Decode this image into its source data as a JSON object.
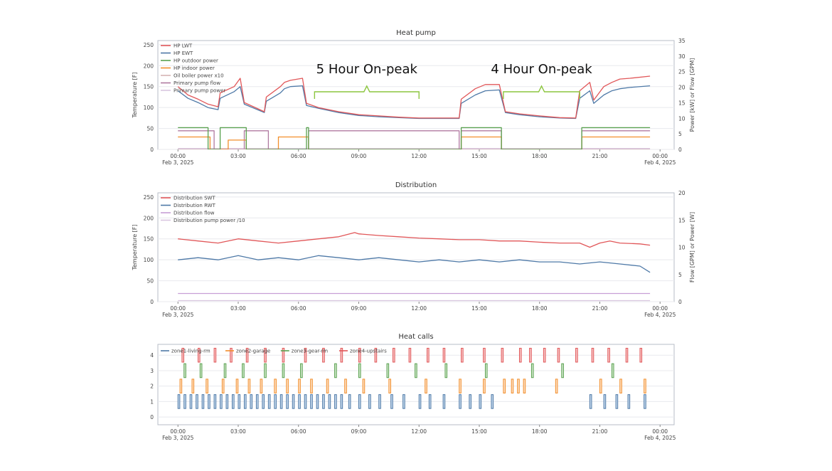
{
  "chart_data": [
    {
      "type": "line",
      "title": "Heat pump",
      "ylabel": "Temperature [F]",
      "y2label": "Power [kW] or Flow [GPM]",
      "ylim": [
        0,
        260
      ],
      "y2lim": [
        0,
        35
      ],
      "yticks": [
        "0",
        "50",
        "100",
        "150",
        "200",
        "250"
      ],
      "y2ticks": [
        "0",
        "5",
        "10",
        "15",
        "20",
        "25",
        "30",
        "35"
      ],
      "xticks": [
        "00:00",
        "03:00",
        "06:00",
        "09:00",
        "12:00",
        "15:00",
        "18:00",
        "21:00",
        "00:00"
      ],
      "xtick_dates": [
        "Feb 3, 2025",
        "",
        "",
        "",
        "",
        "",
        "",
        "",
        "Feb 4, 2025"
      ],
      "legend_position": "top-left",
      "colors": {
        "hp_lwt": "#e15759",
        "hp_ewt": "#4e79a7",
        "outdoor_power": "#59a14f",
        "indoor_power": "#f28e2b",
        "oil_boiler": "#d6b4b4",
        "pump_flow": "#b07aa1",
        "pump_power": "#d9c7e0",
        "annotation": "#8cc63f"
      },
      "series": [
        {
          "name": "HP LWT",
          "axis": "y",
          "x": [
            0,
            0.5,
            1,
            1.5,
            2.0,
            2.1,
            2.8,
            3.1,
            3.3,
            4.3,
            4.4,
            5.1,
            5.3,
            5.6,
            6.2,
            6.4,
            7,
            8,
            9,
            10,
            11,
            12,
            13,
            14.0,
            14.1,
            14.8,
            15.3,
            16.0,
            16.3,
            17,
            18,
            19,
            19.8,
            20.0,
            20.5,
            20.7,
            21.2,
            21.6,
            22.0,
            22.5,
            23.5
          ],
          "values": [
            150,
            130,
            120,
            108,
            102,
            135,
            150,
            170,
            112,
            90,
            125,
            150,
            160,
            165,
            170,
            110,
            100,
            90,
            83,
            80,
            77,
            75,
            75,
            75,
            120,
            145,
            155,
            155,
            90,
            85,
            80,
            76,
            75,
            140,
            160,
            118,
            150,
            160,
            168,
            170,
            175
          ]
        },
        {
          "name": "HP EWT",
          "axis": "y",
          "x": [
            0,
            0.5,
            1,
            1.5,
            2.0,
            2.1,
            2.8,
            3.1,
            3.3,
            4.3,
            4.4,
            5.1,
            5.3,
            5.6,
            6.2,
            6.4,
            7,
            8,
            9,
            10,
            11,
            12,
            13,
            14.0,
            14.1,
            14.8,
            15.3,
            16.0,
            16.3,
            17,
            18,
            19,
            19.8,
            20.0,
            20.5,
            20.7,
            21.2,
            21.6,
            22.0,
            22.5,
            23.5
          ],
          "values": [
            140,
            122,
            112,
            100,
            95,
            122,
            138,
            150,
            108,
            88,
            115,
            135,
            145,
            150,
            152,
            105,
            98,
            88,
            81,
            78,
            76,
            74,
            74,
            74,
            110,
            130,
            140,
            142,
            88,
            83,
            78,
            75,
            74,
            122,
            140,
            110,
            130,
            140,
            145,
            148,
            152
          ]
        },
        {
          "name": "HP outdoor power",
          "axis": "y2",
          "x": [
            0,
            0.6,
            1.5,
            1.6,
            2.1,
            3.3,
            3.4,
            4.4,
            6.4,
            6.5,
            14.0,
            14.1,
            16.0,
            16.1,
            20.0,
            20.1,
            23.5
          ],
          "values": [
            7,
            7,
            0,
            0,
            7,
            7,
            0,
            0,
            7,
            0,
            0,
            7,
            7,
            0,
            0,
            7,
            7
          ]
        },
        {
          "name": "HP indoor power",
          "axis": "y2",
          "x": [
            0,
            1.5,
            1.6,
            2.1,
            2.5,
            3.3,
            3.4,
            4.4,
            5.0,
            6.4,
            6.5,
            14.0,
            14.1,
            16.0,
            16.1,
            20.0,
            20.1,
            23.5
          ],
          "values": [
            4,
            4,
            0,
            0,
            3,
            3,
            0,
            0,
            4,
            4,
            0,
            0,
            4,
            4,
            0,
            0,
            4,
            4
          ]
        },
        {
          "name": "Oil boiler power x10",
          "axis": "y2",
          "x": [
            0,
            23.5
          ],
          "values": [
            0,
            0
          ]
        },
        {
          "name": "Primary pump flow",
          "axis": "y2",
          "x": [
            0,
            1.7,
            1.8,
            3.2,
            3.3,
            4.4,
            4.5,
            6.4,
            6.5,
            14.0,
            14.1,
            16.0,
            16.1,
            20.0,
            20.1,
            23.5
          ],
          "values": [
            6,
            6,
            0,
            0,
            6,
            6,
            0,
            0,
            6,
            0,
            6,
            6,
            0,
            0,
            6,
            6
          ]
        },
        {
          "name": "Primary pump power",
          "axis": "y2",
          "x": [
            0,
            23.5
          ],
          "values": [
            0.3,
            0.3
          ]
        }
      ],
      "annotations": [
        {
          "text": "5 Hour On-peak",
          "x_start": 6.8,
          "x_end": 12.0
        },
        {
          "text": "4 Hour On-peak",
          "x_start": 16.2,
          "x_end": 20.0
        }
      ]
    },
    {
      "type": "line",
      "title": "Distribution",
      "ylabel": "Temperature [F]",
      "y2label": "Flow [GPM] or Power [W]",
      "ylim": [
        0,
        260
      ],
      "y2lim": [
        0,
        20
      ],
      "yticks": [
        "0",
        "50",
        "100",
        "150",
        "200",
        "250"
      ],
      "y2ticks": [
        "0",
        "5",
        "10",
        "15",
        "20"
      ],
      "xticks": [
        "00:00",
        "03:00",
        "06:00",
        "09:00",
        "12:00",
        "15:00",
        "18:00",
        "21:00",
        "00:00"
      ],
      "xtick_dates": [
        "Feb 3, 2025",
        "",
        "",
        "",
        "",
        "",
        "",
        "",
        "Feb 4, 2025"
      ],
      "legend_position": "top-left",
      "colors": {
        "swt": "#e15759",
        "rwt": "#4e79a7",
        "flow": "#c79fd6",
        "pump_power": "#d9c7e0"
      },
      "series": [
        {
          "name": "Distribution SWT",
          "axis": "y",
          "x": [
            0,
            1,
            2,
            3,
            4,
            5,
            6,
            7,
            8,
            8.8,
            9,
            10,
            11,
            12,
            13,
            14,
            15,
            16,
            17,
            18,
            19,
            20,
            20.5,
            21,
            21.5,
            22,
            23,
            23.5
          ],
          "values": [
            150,
            145,
            140,
            150,
            145,
            140,
            145,
            150,
            155,
            165,
            162,
            158,
            155,
            152,
            150,
            148,
            148,
            145,
            145,
            142,
            140,
            140,
            130,
            140,
            145,
            140,
            138,
            135
          ]
        },
        {
          "name": "Distribution RWT",
          "axis": "y",
          "x": [
            0,
            1,
            2,
            3,
            4,
            5,
            6,
            7,
            8,
            9,
            10,
            11,
            12,
            13,
            14,
            15,
            16,
            17,
            18,
            19,
            20,
            21,
            22,
            23,
            23.5
          ],
          "values": [
            100,
            105,
            100,
            110,
            100,
            105,
            100,
            110,
            105,
            100,
            105,
            100,
            95,
            100,
            95,
            100,
            95,
            100,
            95,
            95,
            90,
            95,
            90,
            85,
            70
          ]
        },
        {
          "name": "Distribution flow",
          "axis": "y2",
          "x": [
            0,
            23.5
          ],
          "values": [
            1.5,
            1.5
          ]
        },
        {
          "name": "Distribution pump power /10",
          "axis": "y2",
          "x": [
            0,
            23.5
          ],
          "values": [
            0.2,
            0.2
          ]
        }
      ]
    },
    {
      "type": "bar",
      "title": "Heat calls",
      "ylim": [
        -0.5,
        4.7
      ],
      "yticks": [
        "0",
        "1",
        "2",
        "3",
        "4"
      ],
      "xticks": [
        "00:00",
        "03:00",
        "06:00",
        "09:00",
        "12:00",
        "15:00",
        "18:00",
        "21:00",
        "00:00"
      ],
      "xtick_dates": [
        "Feb 3, 2025",
        "",
        "",
        "",
        "",
        "",
        "",
        "",
        "Feb 4, 2025"
      ],
      "legend_position": "top-left",
      "series": [
        {
          "name": "zone1-living-rm",
          "level": 1,
          "color": "#4e79a7",
          "fill": "#c6d9ec",
          "calls": [
            0.0,
            0.3,
            0.6,
            0.9,
            1.2,
            1.5,
            1.8,
            2.1,
            2.4,
            2.7,
            3.0,
            3.3,
            3.6,
            3.9,
            4.2,
            4.5,
            4.8,
            5.1,
            5.4,
            5.7,
            6.0,
            6.3,
            6.6,
            6.9,
            7.2,
            7.5,
            7.8,
            8.1,
            8.5,
            9.0,
            9.5,
            10.0,
            10.6,
            11.2,
            12.0,
            12.5,
            13.2,
            14.0,
            14.5,
            15.0,
            15.6,
            20.5,
            21.2,
            21.8,
            22.4,
            23.2
          ]
        },
        {
          "name": "zone2-garage",
          "level": 2,
          "color": "#f28e2b",
          "fill": "#fde0c5",
          "calls": [
            0.1,
            0.7,
            1.4,
            2.2,
            2.9,
            3.5,
            4.1,
            4.8,
            5.4,
            6.0,
            6.6,
            7.4,
            8.3,
            9.2,
            10.5,
            12.3,
            14.0,
            15.2,
            16.2,
            16.6,
            16.9,
            17.2,
            18.8,
            21.0,
            22.0,
            23.2
          ]
        },
        {
          "name": "zone3-gear-rm",
          "level": 3,
          "color": "#59a14f",
          "fill": "#cfe6c9",
          "calls": [
            0.3,
            1.1,
            2.3,
            3.2,
            4.3,
            5.2,
            6.1,
            7.8,
            9.0,
            10.4,
            11.8,
            13.3,
            15.3,
            17.6,
            19.1,
            21.6
          ]
        },
        {
          "name": "zone4-upstairs",
          "level": 4,
          "color": "#e15759",
          "fill": "#f7c6c6",
          "calls": [
            0.2,
            1.0,
            1.8,
            2.6,
            3.4,
            4.3,
            5.2,
            6.3,
            7.2,
            8.1,
            9.0,
            9.8,
            10.7,
            11.5,
            12.4,
            13.2,
            14.1,
            15.2,
            16.1,
            17.0,
            17.5,
            18.2,
            18.9,
            19.8,
            20.6,
            21.4,
            22.3,
            23.0
          ]
        }
      ]
    }
  ]
}
